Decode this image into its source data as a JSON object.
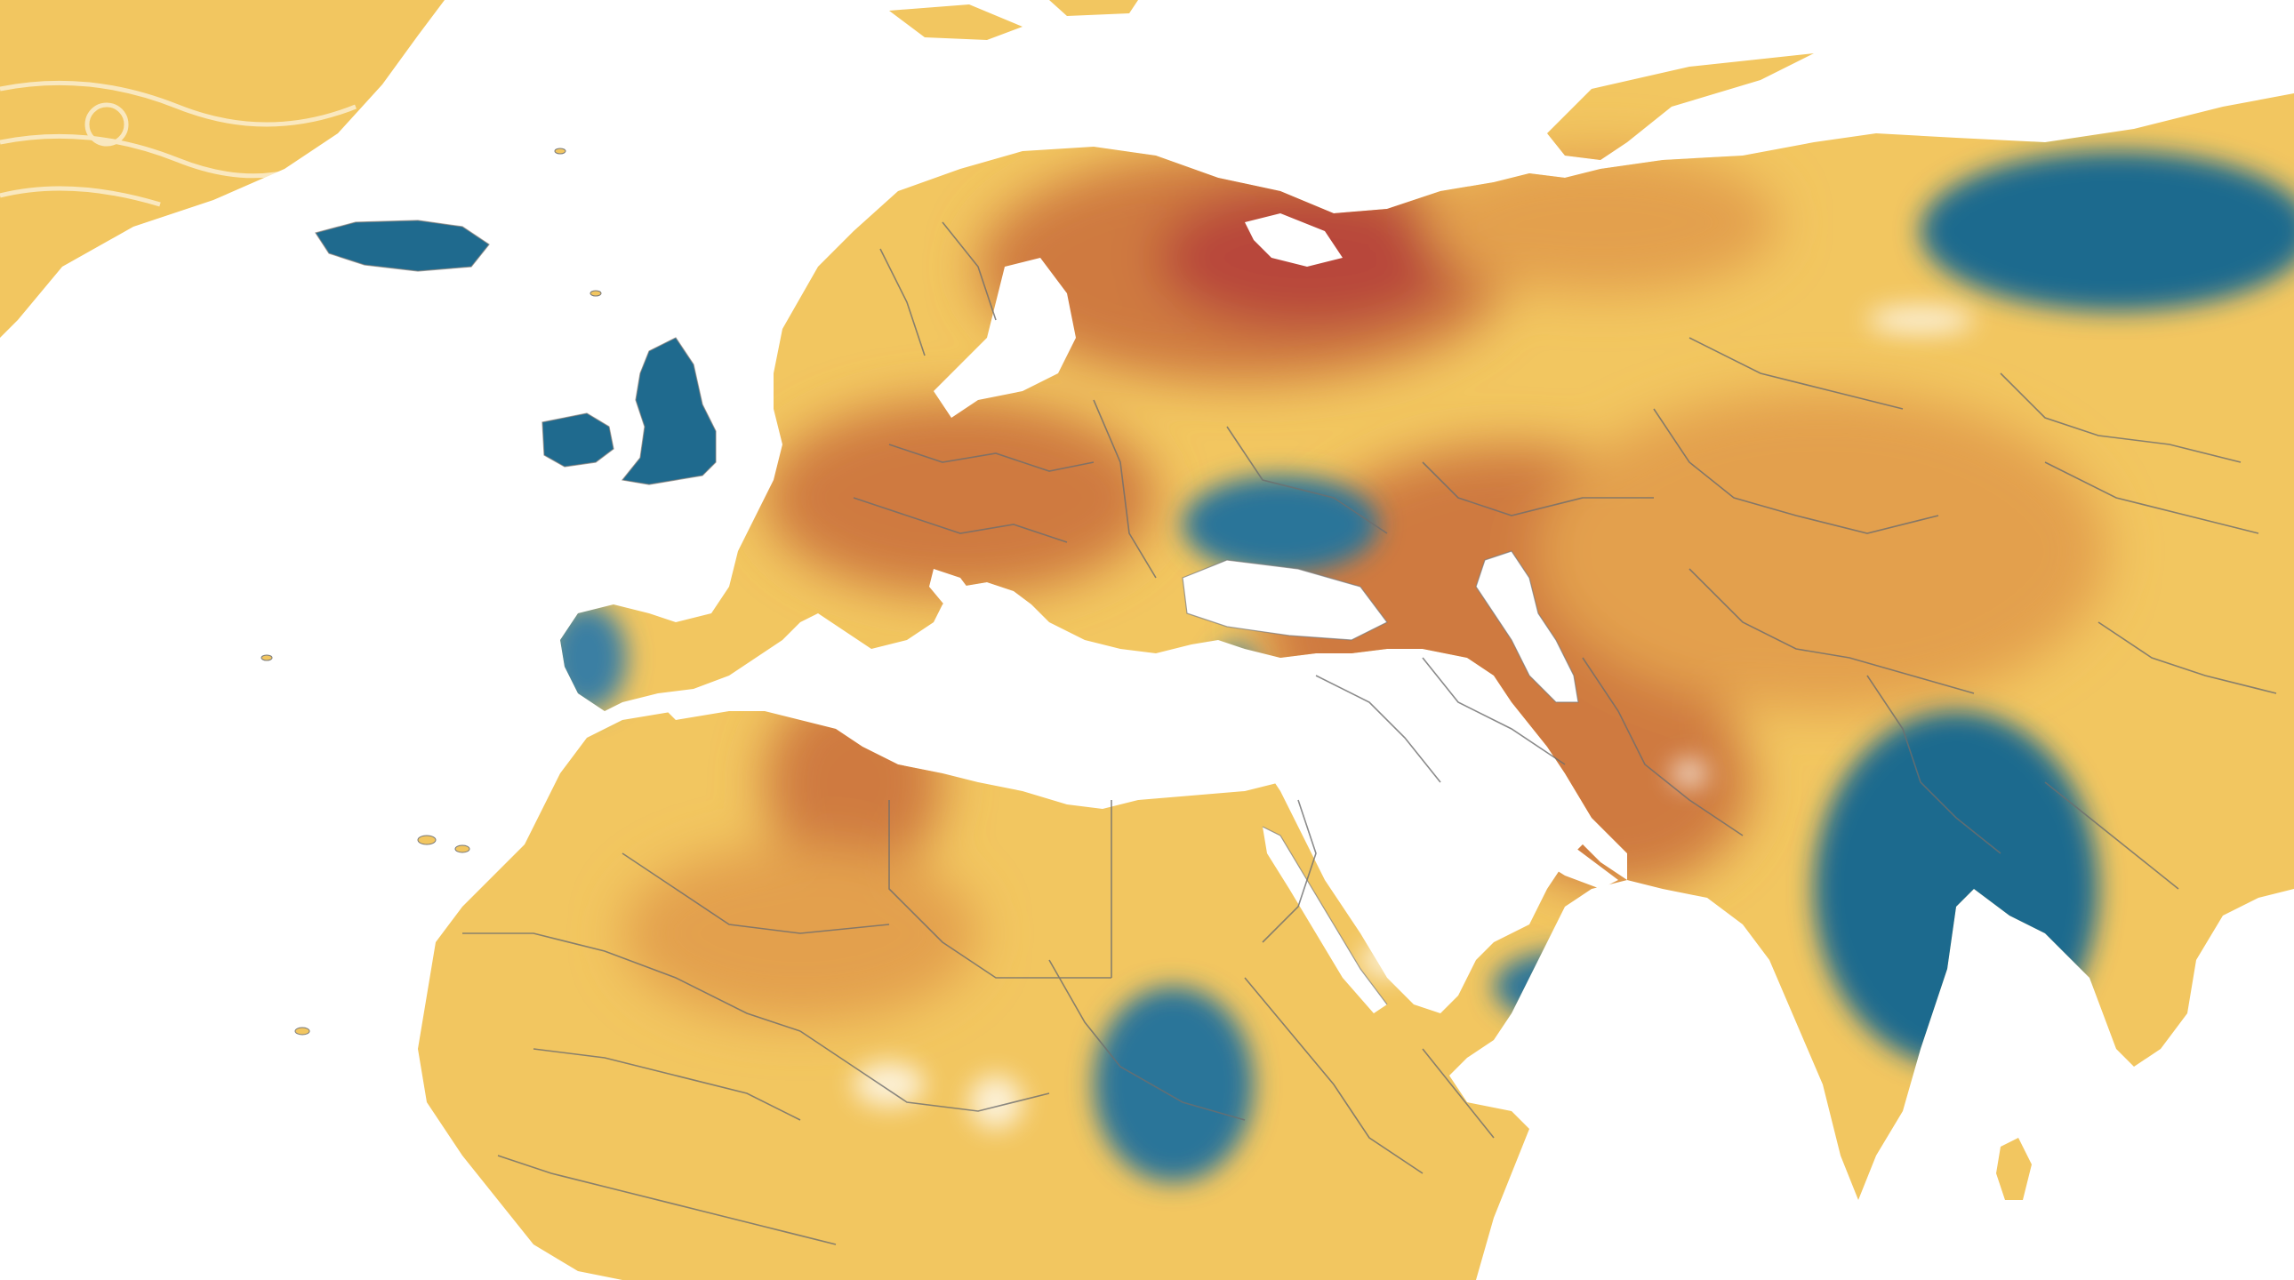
{
  "map": {
    "type": "temperature-anomaly-choropleth",
    "palette": {
      "ocean": "#ffffff",
      "mild_warm": "#f2c660",
      "warm": "#e3a04e",
      "hot": "#cf7a3f",
      "very_hot": "#b8473a",
      "cool": "#3b7fa3",
      "cold": "#1f6a8e",
      "border": "#6e6e6e"
    },
    "cool_regions": [
      "ireland-uk",
      "iceland",
      "black-sea-ukraine",
      "iberia-west",
      "anatolia-west",
      "east-siberia",
      "indian-subcontinent",
      "south-sudan",
      "arabia-south"
    ],
    "hot_regions": [
      "fennoscandia-northwest-russia",
      "central-europe",
      "caspian-central-asia",
      "libya-sahara"
    ]
  }
}
